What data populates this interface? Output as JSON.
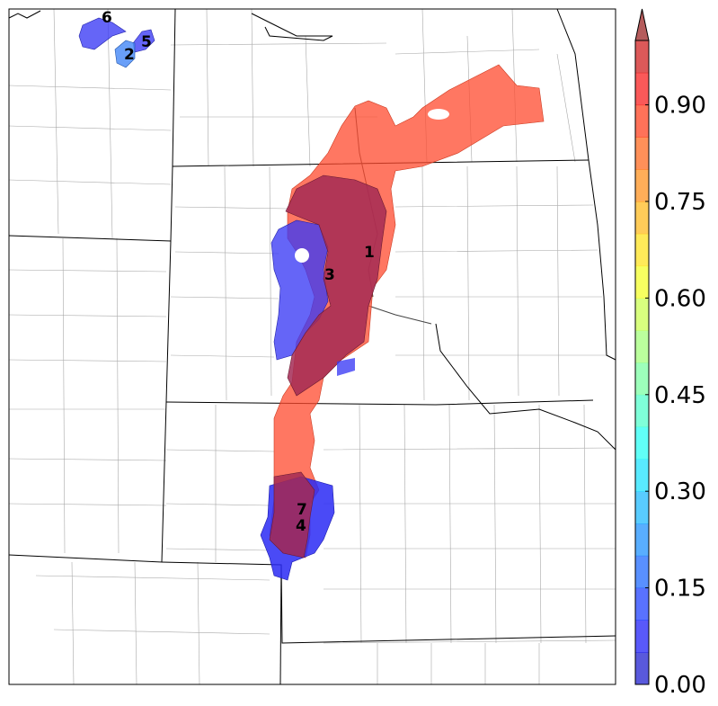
{
  "colorbar": {
    "min": 0.0,
    "max": 1.0,
    "tick_labels": [
      "0.00",
      "0.15",
      "0.30",
      "0.45",
      "0.60",
      "0.75",
      "0.90"
    ],
    "tick_values": [
      0.0,
      0.15,
      0.3,
      0.45,
      0.6,
      0.75,
      0.9
    ],
    "extend": "max",
    "colormap": "jet",
    "alpha": 0.65
  },
  "region_labels": [
    {
      "id": "1",
      "text": "1"
    },
    {
      "id": "2",
      "text": "2"
    },
    {
      "id": "3",
      "text": "3"
    },
    {
      "id": "4",
      "text": "4"
    },
    {
      "id": "5",
      "text": "5"
    },
    {
      "id": "6",
      "text": "6"
    },
    {
      "id": "7",
      "text": "7"
    }
  ],
  "colors": {
    "high_prob": "#ff4a2e",
    "overlap": "#b0324f",
    "low_prob": "#3a3af5",
    "mid_low": "#4f8ef7",
    "border": "#000000",
    "county": "#9a9a9a"
  }
}
